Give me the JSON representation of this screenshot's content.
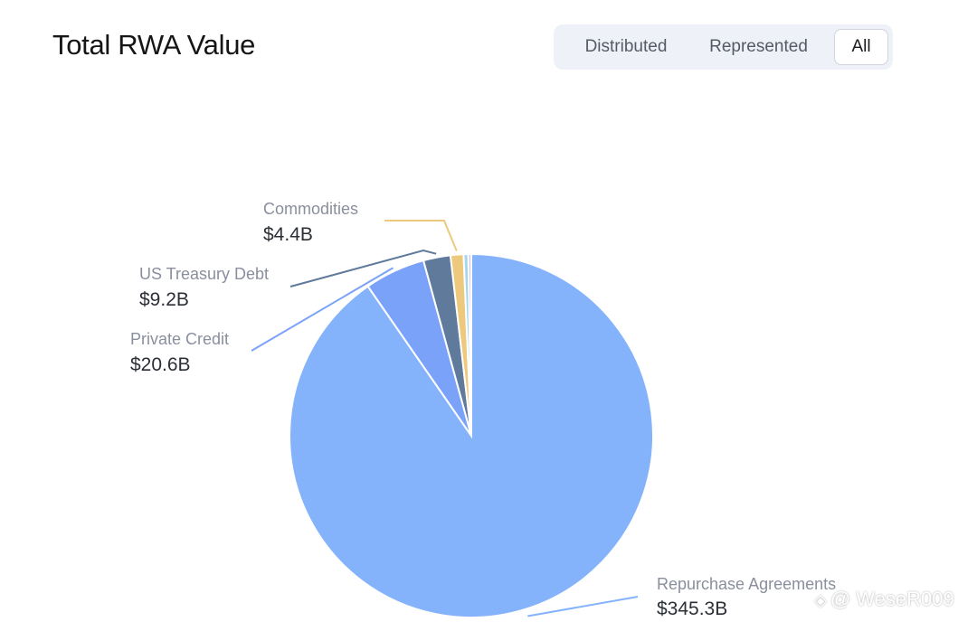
{
  "header": {
    "title": "Total RWA Value"
  },
  "toggle": {
    "options": [
      "Distributed",
      "Represented",
      "All"
    ],
    "selected": "All"
  },
  "watermark": {
    "text": "@ WeseR009"
  },
  "colors": {
    "repurchase": "#84b3fc",
    "private_credit": "#7ba2f9",
    "treasury": "#5f7a9a",
    "commodities": "#ecc97c",
    "small_1": "#a6d5ee",
    "small_2": "#c9c4ec"
  },
  "chart_data": {
    "type": "pie",
    "title": "Total RWA Value",
    "slices": [
      {
        "name": "Repurchase Agreements",
        "value": 345.3,
        "label": "$345.3B",
        "color": "#84b3fc"
      },
      {
        "name": "Private Credit",
        "value": 20.6,
        "label": "$20.6B",
        "color": "#7ba2f9"
      },
      {
        "name": "US Treasury Debt",
        "value": 9.2,
        "label": "$9.2B",
        "color": "#5f7a9a"
      },
      {
        "name": "Commodities",
        "value": 4.4,
        "label": "$4.4B",
        "color": "#ecc97c"
      },
      {
        "name": "",
        "value": 1.6,
        "label": "",
        "color": "#a6d5ee"
      },
      {
        "name": "",
        "value": 1.0,
        "label": "",
        "color": "#c9c4ec"
      }
    ]
  }
}
